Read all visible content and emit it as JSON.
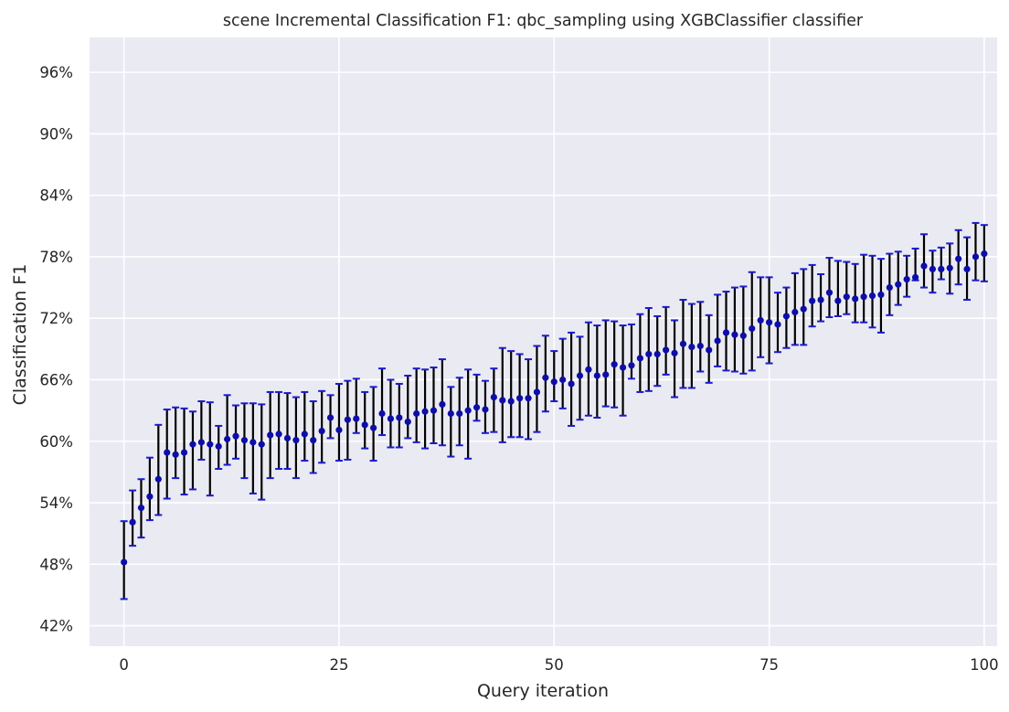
{
  "chart_data": {
    "type": "scatter",
    "title": "scene Incremental Classification F1: qbc_sampling using XGBClassifier classifier",
    "xlabel": "Query iteration",
    "ylabel": "Classification F1",
    "xlim": [
      -4,
      101.5
    ],
    "ylim": [
      40.0,
      99.4
    ],
    "xticks": [
      0,
      25,
      50,
      75,
      100
    ],
    "yticks": [
      42,
      48,
      54,
      60,
      66,
      72,
      78,
      84,
      90,
      96
    ],
    "ytick_suffix": "%",
    "grid": true,
    "point_color": "#0d0daa",
    "errorbar_color": "#000000",
    "cap_color": "#1a1ad6",
    "background_color": "#eaeaf2",
    "x": [
      0,
      1,
      2,
      3,
      4,
      5,
      6,
      7,
      8,
      9,
      10,
      11,
      12,
      13,
      14,
      15,
      16,
      17,
      18,
      19,
      20,
      21,
      22,
      23,
      24,
      25,
      26,
      27,
      28,
      29,
      30,
      31,
      32,
      33,
      34,
      35,
      36,
      37,
      38,
      39,
      40,
      41,
      42,
      43,
      44,
      45,
      46,
      47,
      48,
      49,
      50,
      51,
      52,
      53,
      54,
      55,
      56,
      57,
      58,
      59,
      60,
      61,
      62,
      63,
      64,
      65,
      66,
      67,
      68,
      69,
      70,
      71,
      72,
      73,
      74,
      75,
      76,
      77,
      78,
      79,
      80,
      81,
      82,
      83,
      84,
      85,
      86,
      87,
      88,
      89,
      90,
      91,
      92,
      93,
      94,
      95,
      96,
      97,
      98,
      99,
      100
    ],
    "mean": [
      48.2,
      52.1,
      53.5,
      54.6,
      56.3,
      58.9,
      58.7,
      58.9,
      59.7,
      59.9,
      59.7,
      59.5,
      60.2,
      60.5,
      60.1,
      59.9,
      59.7,
      60.6,
      60.7,
      60.3,
      60.1,
      60.7,
      60.1,
      61.0,
      62.3,
      61.1,
      62.1,
      62.2,
      61.6,
      61.3,
      62.7,
      62.2,
      62.3,
      61.9,
      62.7,
      62.9,
      63.0,
      63.6,
      62.7,
      62.7,
      63.0,
      63.3,
      63.1,
      64.3,
      64.0,
      63.9,
      64.2,
      64.2,
      64.8,
      66.2,
      65.8,
      66.0,
      65.6,
      66.4,
      67.0,
      66.4,
      66.5,
      67.5,
      67.2,
      67.4,
      68.1,
      68.5,
      68.5,
      68.9,
      68.6,
      69.5,
      69.2,
      69.3,
      68.9,
      69.8,
      70.6,
      70.4,
      70.3,
      71.0,
      71.8,
      71.6,
      71.4,
      72.2,
      72.6,
      72.9,
      73.7,
      73.8,
      74.5,
      73.7,
      74.1,
      73.9,
      74.1,
      74.2,
      74.3,
      75.0,
      75.3,
      75.8,
      76.0,
      77.1,
      76.8,
      76.8,
      76.9,
      77.8,
      76.8,
      78.0,
      78.3
    ],
    "upper": [
      52.2,
      55.2,
      56.3,
      58.4,
      61.6,
      63.1,
      63.3,
      63.2,
      62.9,
      63.9,
      63.8,
      61.5,
      64.5,
      63.5,
      63.7,
      63.7,
      63.6,
      64.8,
      64.8,
      64.7,
      64.3,
      64.8,
      63.9,
      64.9,
      64.5,
      65.6,
      65.9,
      66.1,
      64.8,
      65.3,
      67.1,
      66.0,
      65.6,
      66.4,
      67.1,
      67.0,
      67.2,
      68.0,
      65.3,
      66.2,
      67.0,
      66.5,
      65.9,
      67.1,
      69.1,
      68.8,
      68.5,
      68.0,
      69.3,
      70.3,
      68.8,
      70.0,
      70.6,
      70.2,
      71.6,
      71.3,
      71.8,
      71.7,
      71.3,
      71.4,
      72.4,
      73.0,
      72.2,
      73.1,
      71.8,
      73.8,
      73.4,
      73.6,
      72.3,
      74.3,
      74.6,
      75.0,
      75.1,
      76.5,
      76.0,
      76.0,
      74.5,
      75.0,
      76.4,
      76.8,
      77.2,
      76.3,
      77.9,
      77.6,
      77.5,
      77.3,
      78.2,
      78.1,
      77.8,
      78.3,
      78.5,
      78.1,
      78.8,
      80.2,
      78.6,
      78.9,
      79.3,
      80.6,
      79.9,
      81.3,
      81.1
    ],
    "lower": [
      44.6,
      49.8,
      50.6,
      52.3,
      52.8,
      54.4,
      56.4,
      54.8,
      55.3,
      58.2,
      54.7,
      57.3,
      57.7,
      58.3,
      56.4,
      54.9,
      54.3,
      56.4,
      57.3,
      57.3,
      56.4,
      58.1,
      56.9,
      57.9,
      60.3,
      58.1,
      58.2,
      60.8,
      59.3,
      58.1,
      60.6,
      59.4,
      59.4,
      60.3,
      59.9,
      59.3,
      59.8,
      59.6,
      58.5,
      59.6,
      58.3,
      62.0,
      60.8,
      60.9,
      59.9,
      60.4,
      60.4,
      60.2,
      60.9,
      62.9,
      63.9,
      63.2,
      61.5,
      62.1,
      62.5,
      62.3,
      63.4,
      63.3,
      62.5,
      66.1,
      64.8,
      64.9,
      65.4,
      66.5,
      64.3,
      65.2,
      65.2,
      66.8,
      65.7,
      67.3,
      66.9,
      66.8,
      66.6,
      66.9,
      68.2,
      67.6,
      68.7,
      69.1,
      69.4,
      69.4,
      71.2,
      71.7,
      72.1,
      72.2,
      72.4,
      71.6,
      71.6,
      71.1,
      70.6,
      72.3,
      73.3,
      74.1,
      75.7,
      75.0,
      74.5,
      75.8,
      74.4,
      75.3,
      73.8,
      75.7,
      75.6
    ]
  }
}
